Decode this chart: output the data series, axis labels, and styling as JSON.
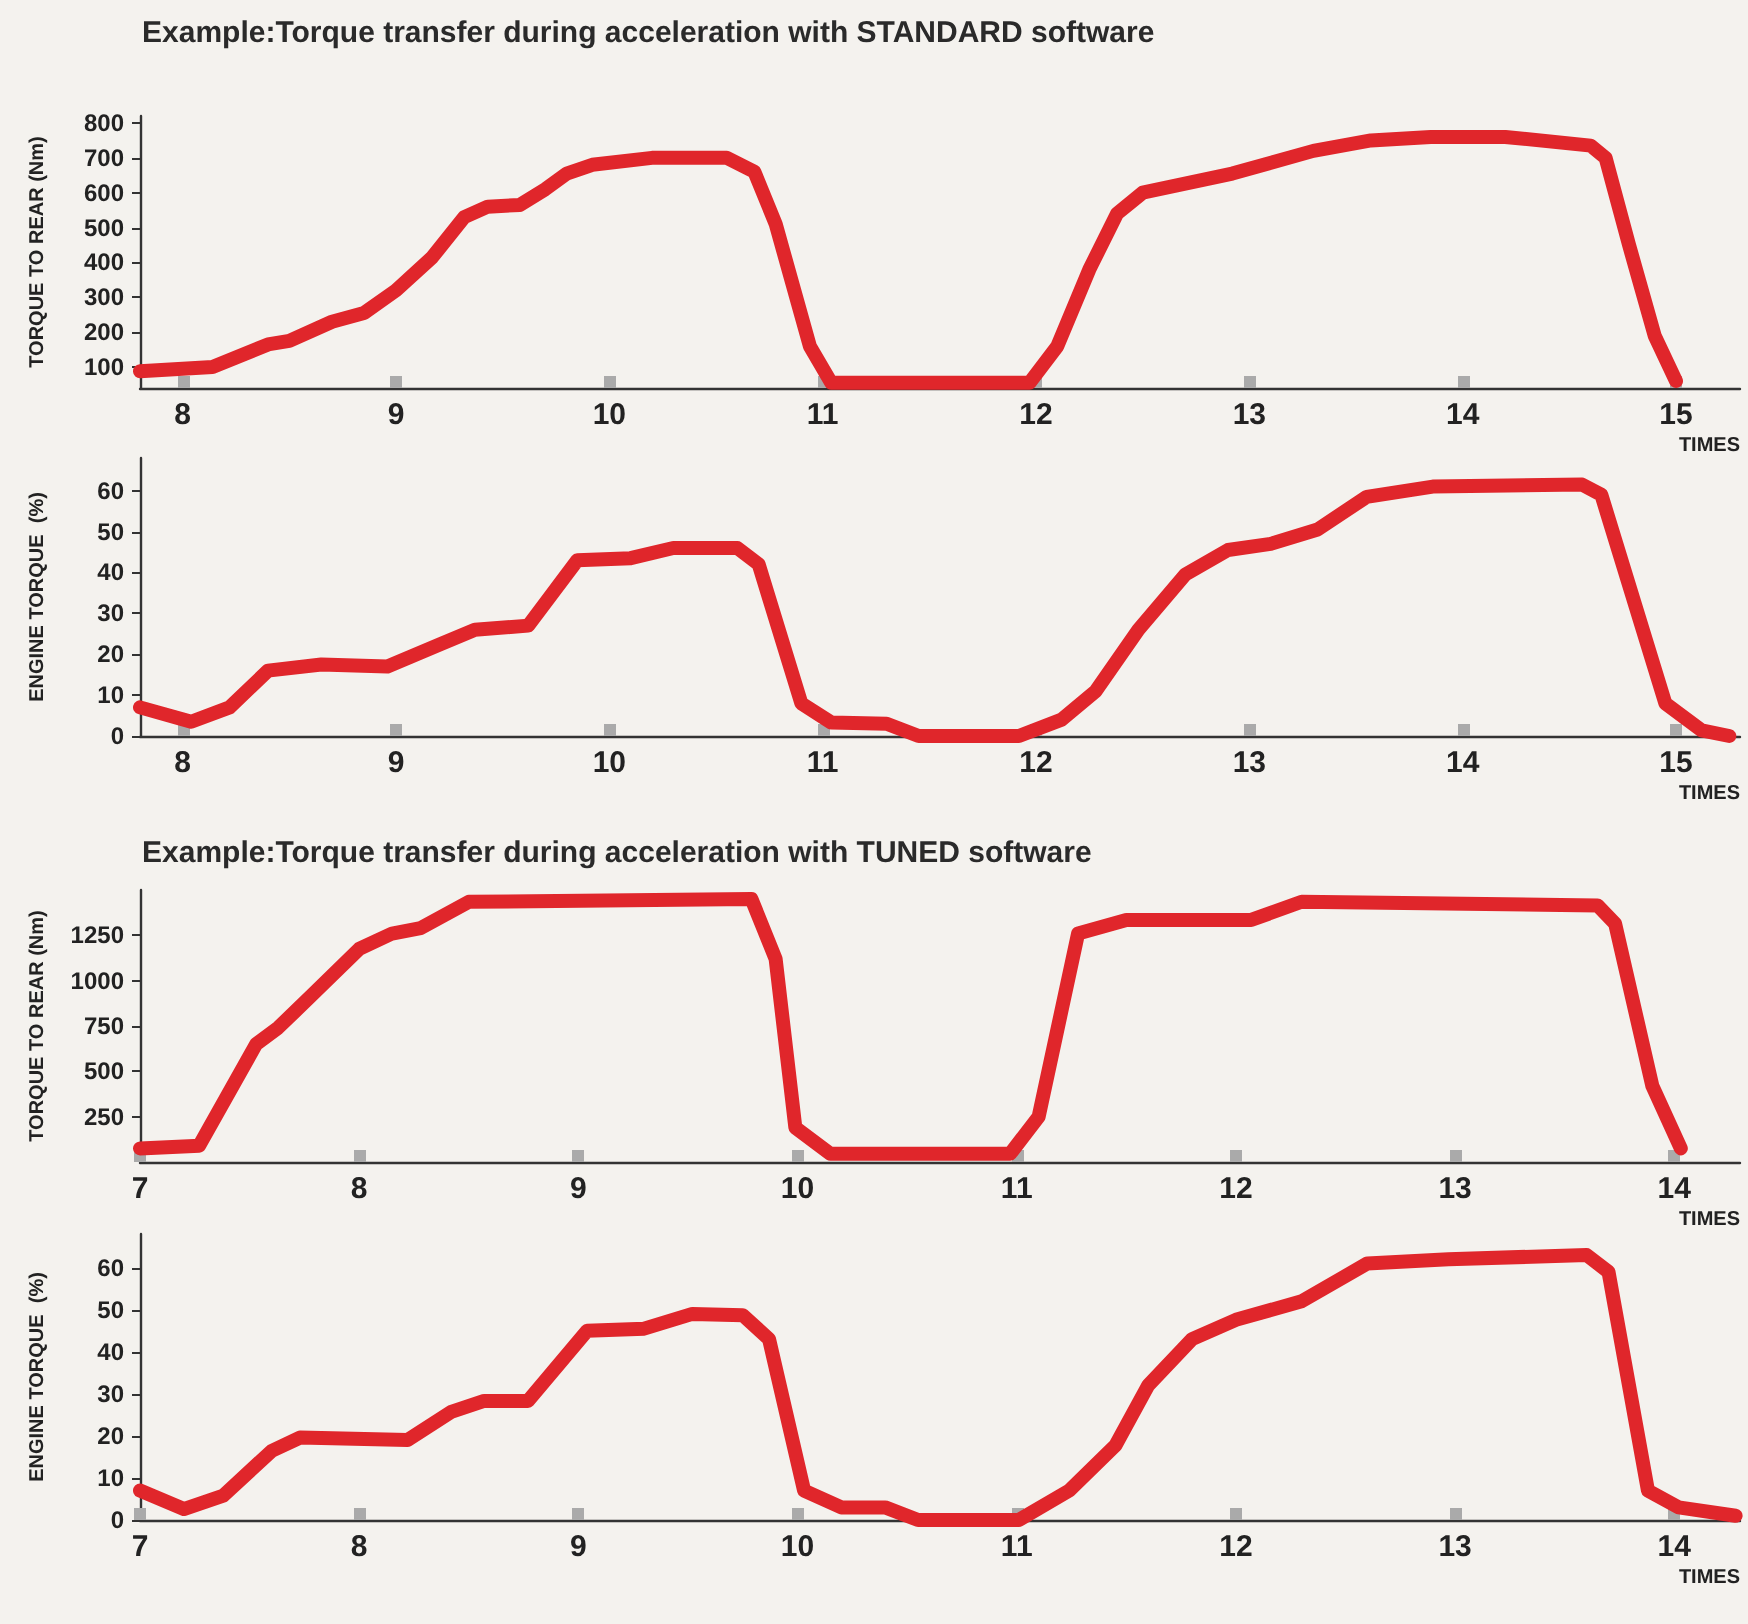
{
  "chart_data": [
    {
      "type": "line",
      "title": "Example:Torque transfer during acceleration with STANDARD software",
      "xlabel": "TIMES",
      "ylabel": "TORQUE TO REAR (Nm)",
      "xlim": [
        7.8,
        15.3
      ],
      "xticks": [
        8,
        9,
        10,
        11,
        12,
        13,
        14,
        15
      ],
      "ylim": [
        40,
        820
      ],
      "yticks": [
        100,
        200,
        300,
        400,
        500,
        600,
        700,
        800
      ],
      "grid": false,
      "series": [
        {
          "color": "#e0262b",
          "x": [
            7.8,
            8.14,
            8.4,
            8.5,
            8.7,
            8.85,
            9.0,
            9.17,
            9.32,
            9.43,
            9.58,
            9.7,
            9.8,
            9.92,
            10.2,
            10.55,
            10.68,
            10.78,
            10.94,
            11.04,
            11.5,
            11.97,
            12.1,
            12.25,
            12.38,
            12.5,
            12.92,
            13.3,
            13.57,
            13.85,
            14.2,
            14.6,
            14.67,
            14.78,
            14.9,
            15.0
          ],
          "values": [
            88,
            100,
            165,
            175,
            230,
            255,
            320,
            415,
            530,
            560,
            565,
            610,
            655,
            680,
            700,
            700,
            660,
            510,
            160,
            55,
            55,
            55,
            160,
            380,
            540,
            600,
            655,
            720,
            750,
            760,
            760,
            735,
            700,
            450,
            190,
            60
          ]
        }
      ]
    },
    {
      "type": "line",
      "xlabel": "TIMES",
      "ylabel": "ENGINE TORQUE  (%)",
      "xlim": [
        7.8,
        15.3
      ],
      "xticks": [
        8,
        9,
        10,
        11,
        12,
        13,
        14,
        15
      ],
      "ylim": [
        0,
        68
      ],
      "yticks": [
        0,
        10,
        20,
        30,
        40,
        50,
        60
      ],
      "grid": false,
      "series": [
        {
          "color": "#e0262b",
          "x": [
            7.8,
            8.04,
            8.22,
            8.4,
            8.65,
            8.96,
            9.21,
            9.37,
            9.62,
            9.85,
            10.1,
            10.3,
            10.6,
            10.7,
            10.9,
            11.04,
            11.3,
            11.45,
            11.92,
            12.12,
            12.28,
            12.48,
            12.7,
            12.9,
            13.1,
            13.32,
            13.55,
            13.86,
            14.56,
            14.65,
            14.95,
            15.12,
            15.25
          ],
          "values": [
            7,
            3.5,
            7,
            16,
            17.5,
            17,
            22.5,
            26,
            27,
            43,
            43.5,
            46,
            46,
            42,
            8,
            3.3,
            3,
            0,
            0,
            4,
            11,
            26,
            39.5,
            45.5,
            47,
            50.5,
            58.5,
            61,
            61.5,
            59,
            8,
            1.4,
            0
          ]
        }
      ]
    },
    {
      "type": "line",
      "title": "Example:Torque transfer during acceleration with TUNED software",
      "xlabel": "TIMES",
      "ylabel": "TORQUE TO REAR (Nm)",
      "xlim": [
        7,
        14.3
      ],
      "xticks": [
        7,
        8,
        9,
        10,
        11,
        12,
        13,
        14
      ],
      "ylim": [
        0,
        1500
      ],
      "yticks": [
        250,
        500,
        750,
        1000,
        1250
      ],
      "grid": false,
      "series": [
        {
          "color": "#e0262b",
          "x": [
            7.0,
            7.27,
            7.53,
            7.63,
            7.78,
            8.0,
            8.15,
            8.28,
            8.5,
            9.79,
            9.9,
            9.99,
            10.15,
            10.97,
            11.1,
            11.28,
            11.5,
            12.07,
            12.3,
            13.65,
            13.73,
            13.9,
            14.03
          ],
          "values": [
            75,
            90,
            650,
            740,
            915,
            1175,
            1260,
            1290,
            1435,
            1450,
            1120,
            190,
            45,
            45,
            250,
            1260,
            1335,
            1335,
            1435,
            1415,
            1315,
            420,
            75
          ]
        }
      ]
    },
    {
      "type": "line",
      "xlabel": "TIMES",
      "ylabel": "ENGINE TORQUE  (%)",
      "xlim": [
        7,
        14.3
      ],
      "xticks": [
        7,
        8,
        9,
        10,
        11,
        12,
        13,
        14
      ],
      "ylim": [
        0,
        68
      ],
      "yticks": [
        0,
        10,
        20,
        30,
        40,
        50,
        60
      ],
      "grid": false,
      "series": [
        {
          "color": "#e0262b",
          "x": [
            7.0,
            7.2,
            7.38,
            7.6,
            7.73,
            8.22,
            8.42,
            8.57,
            8.77,
            9.04,
            9.3,
            9.52,
            9.75,
            9.87,
            10.03,
            10.2,
            10.4,
            10.55,
            11.01,
            11.24,
            11.45,
            11.6,
            11.8,
            12.0,
            12.3,
            12.6,
            12.97,
            13.6,
            13.7,
            13.88,
            14.02,
            14.28
          ],
          "values": [
            7,
            2.6,
            5.8,
            16.4,
            19.6,
            19,
            25.7,
            28.3,
            28.3,
            45,
            45.5,
            49,
            48.7,
            43,
            7,
            3,
            3,
            0,
            0,
            7,
            17.7,
            32,
            43,
            47.6,
            52,
            61,
            62,
            63,
            59,
            7,
            3,
            1
          ]
        }
      ]
    }
  ]
}
